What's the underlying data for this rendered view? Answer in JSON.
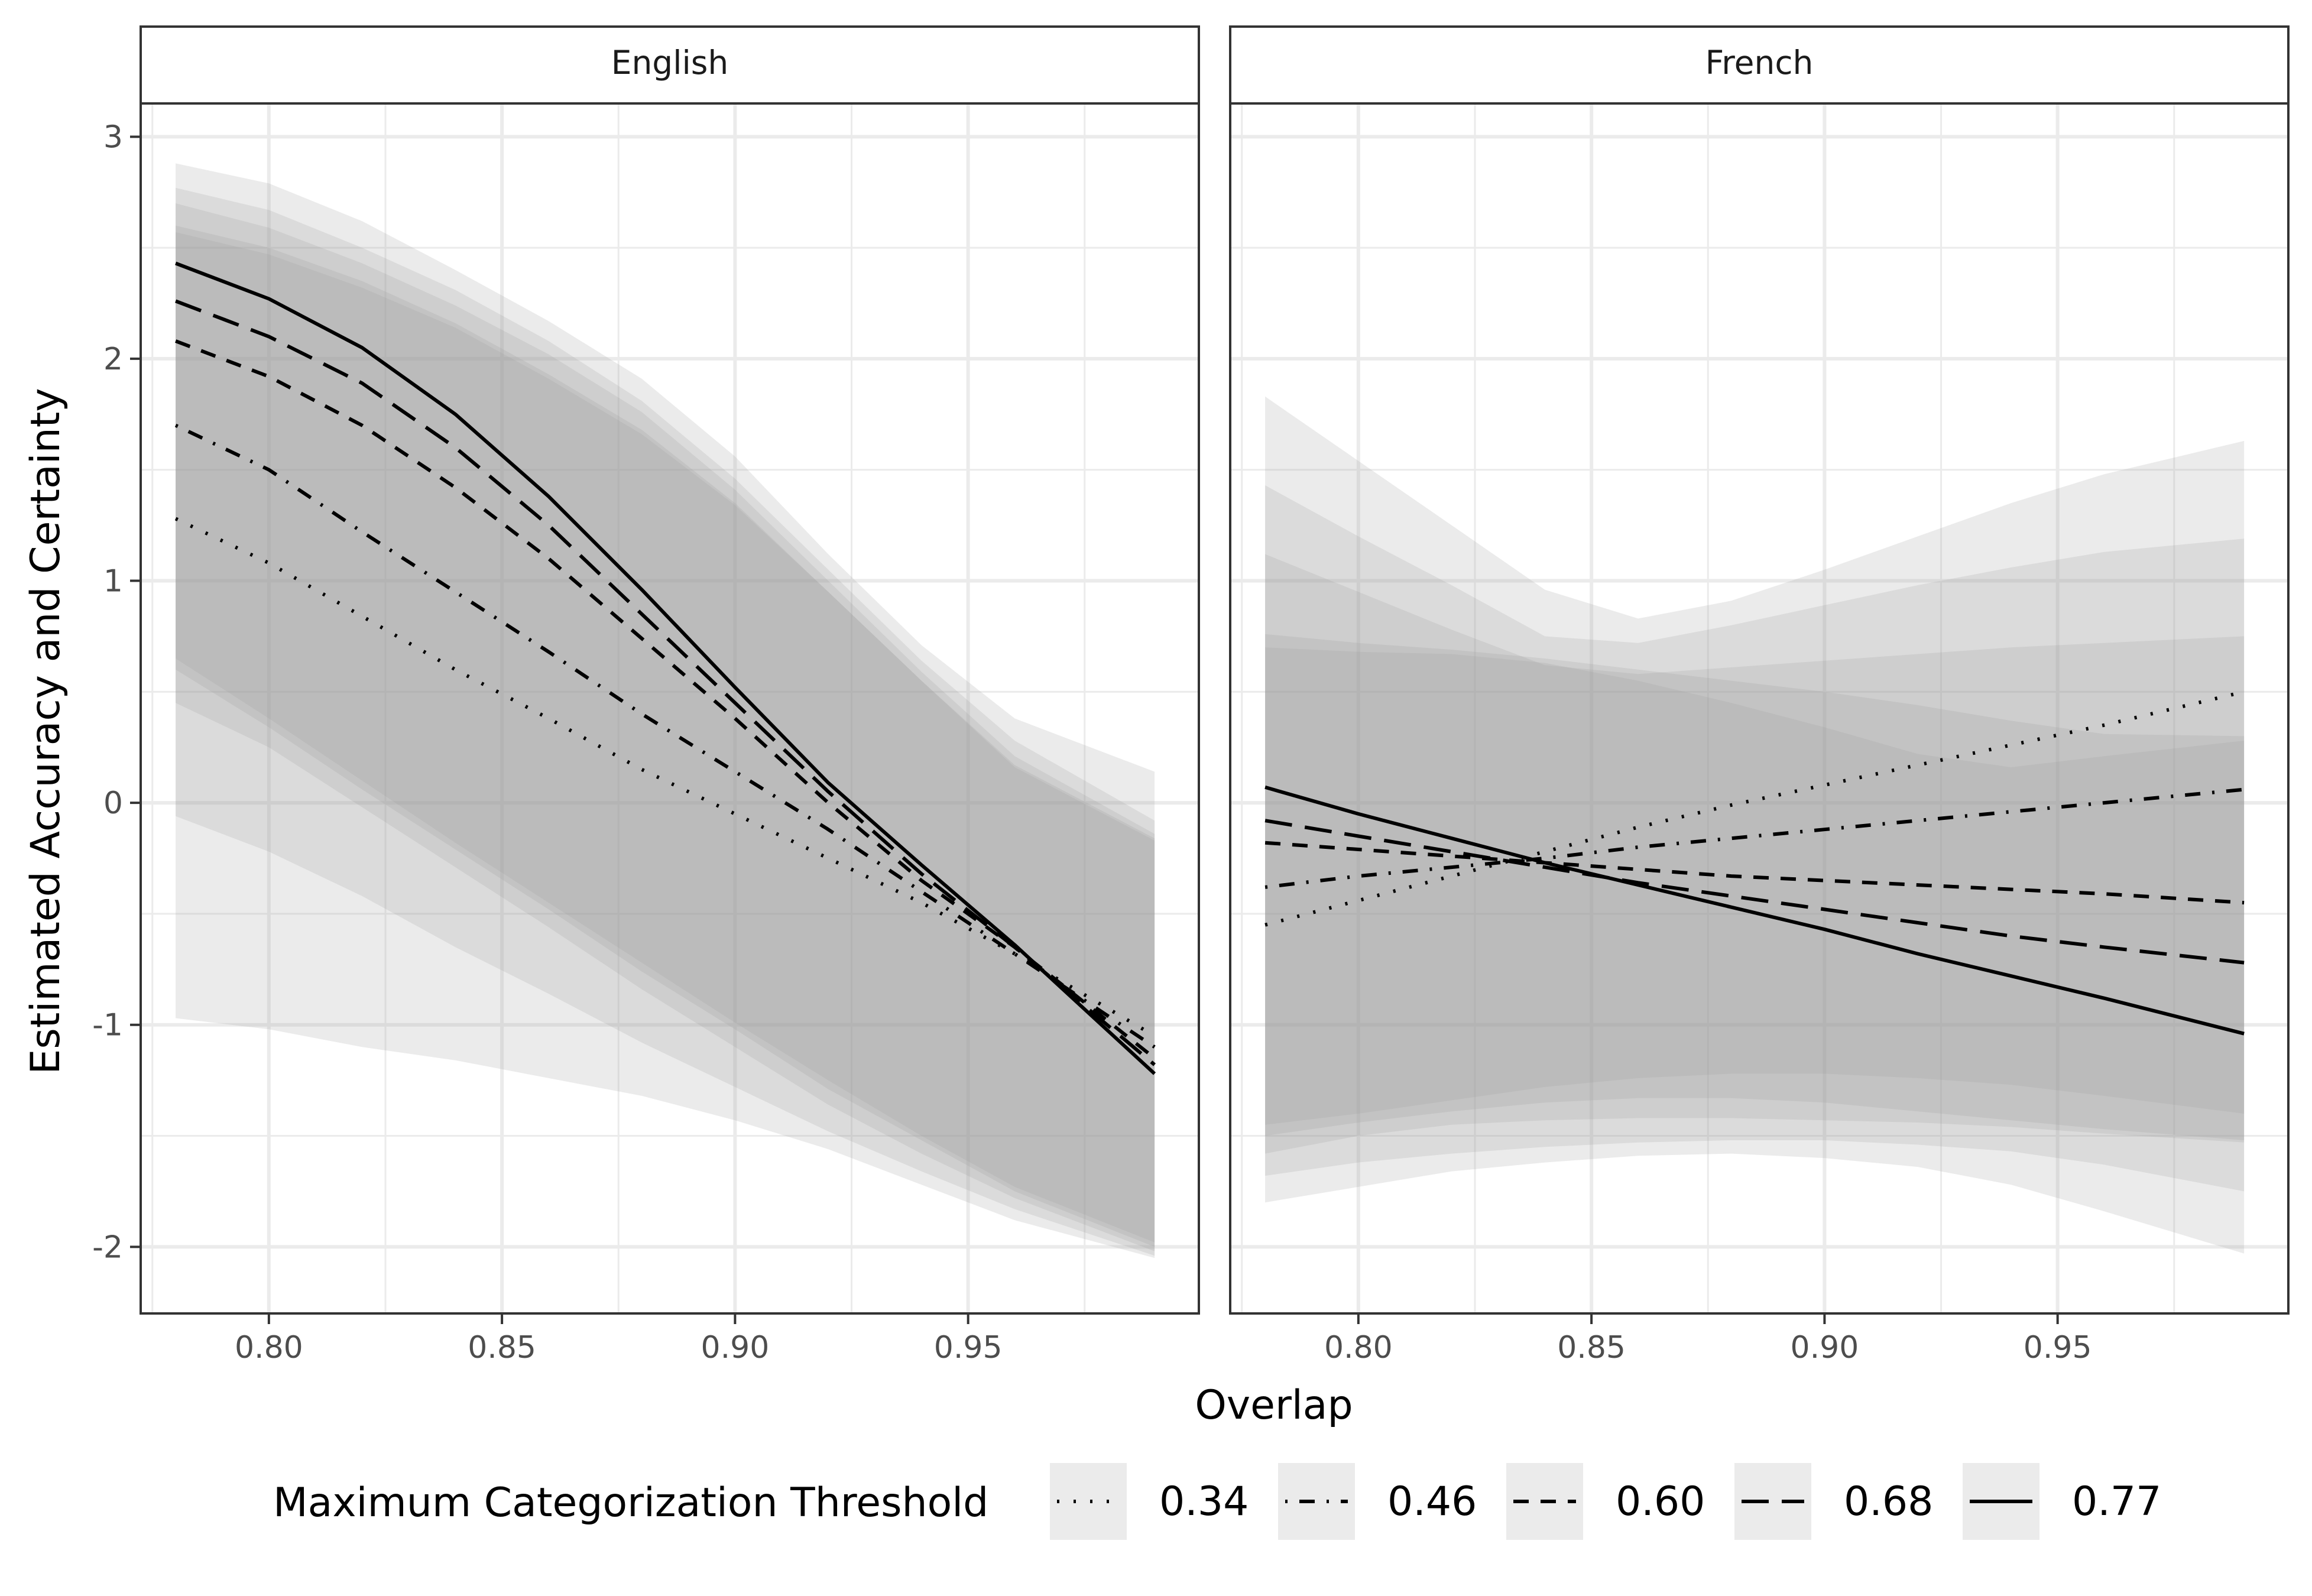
{
  "chart_data": {
    "type": "line",
    "xlabel": "Overlap",
    "ylabel": "Estimated Accuracy and Certainty",
    "xlim": [
      0.7725,
      0.9995
    ],
    "ylim": [
      -2.3,
      3.15
    ],
    "x_ticks": [
      0.8,
      0.85,
      0.9,
      0.95
    ],
    "x_tick_labels": [
      "0.80",
      "0.85",
      "0.90",
      "0.95"
    ],
    "y_ticks": [
      -2,
      -1,
      0,
      1,
      2,
      3
    ],
    "y_tick_labels": [
      "-2",
      "-1",
      "0",
      "1",
      "2",
      "3"
    ],
    "grid": true,
    "legend": {
      "title": "Maximum Categorization Threshold",
      "position": "bottom",
      "entries": [
        "0.34",
        "0.46",
        "0.60",
        "0.68",
        "0.77"
      ]
    },
    "line_color": "#000000",
    "ribbon_color": "#999999",
    "x": [
      0.78,
      0.8,
      0.82,
      0.84,
      0.86,
      0.88,
      0.9,
      0.92,
      0.94,
      0.96,
      0.99
    ],
    "panels": [
      {
        "label": "English",
        "series": [
          {
            "name": "0.34",
            "dash": "dotted",
            "values": [
              1.28,
              1.08,
              0.84,
              0.6,
              0.38,
              0.15,
              -0.05,
              -0.25,
              -0.45,
              -0.68,
              -1.05
            ],
            "lower": [
              -0.97,
              -1.02,
              -1.1,
              -1.16,
              -1.24,
              -1.32,
              -1.43,
              -1.56,
              -1.72,
              -1.88,
              -2.05
            ],
            "upper": [
              2.88,
              2.79,
              2.62,
              2.4,
              2.17,
              1.91,
              1.56,
              1.12,
              0.71,
              0.38,
              0.14
            ]
          },
          {
            "name": "0.46",
            "dash": "dotdash",
            "values": [
              1.7,
              1.5,
              1.22,
              0.95,
              0.68,
              0.4,
              0.14,
              -0.12,
              -0.4,
              -0.68,
              -1.1
            ],
            "lower": [
              -0.06,
              -0.22,
              -0.42,
              -0.65,
              -0.86,
              -1.08,
              -1.28,
              -1.48,
              -1.66,
              -1.83,
              -2.04
            ],
            "upper": [
              2.77,
              2.67,
              2.5,
              2.31,
              2.08,
              1.81,
              1.46,
              1.05,
              0.64,
              0.28,
              -0.08
            ]
          },
          {
            "name": "0.60",
            "dash": "dashed",
            "values": [
              2.08,
              1.92,
              1.7,
              1.42,
              1.1,
              0.74,
              0.38,
              0.0,
              -0.35,
              -0.65,
              -1.15
            ],
            "lower": [
              0.45,
              0.25,
              -0.02,
              -0.29,
              -0.56,
              -0.84,
              -1.1,
              -1.36,
              -1.58,
              -1.78,
              -2.02
            ],
            "upper": [
              2.7,
              2.59,
              2.43,
              2.24,
              2.02,
              1.76,
              1.41,
              1.0,
              0.59,
              0.21,
              -0.14
            ]
          },
          {
            "name": "0.68",
            "dash": "longdash",
            "values": [
              2.26,
              2.1,
              1.89,
              1.6,
              1.25,
              0.85,
              0.45,
              0.05,
              -0.32,
              -0.65,
              -1.18
            ],
            "lower": [
              0.6,
              0.34,
              0.06,
              -0.21,
              -0.48,
              -0.76,
              -1.02,
              -1.29,
              -1.52,
              -1.75,
              -2.0
            ],
            "upper": [
              2.6,
              2.5,
              2.35,
              2.16,
              1.93,
              1.68,
              1.35,
              0.95,
              0.55,
              0.17,
              -0.16
            ]
          },
          {
            "name": "0.77",
            "dash": "solid",
            "values": [
              2.43,
              2.27,
              2.05,
              1.75,
              1.38,
              0.96,
              0.52,
              0.09,
              -0.28,
              -0.64,
              -1.22
            ],
            "lower": [
              0.65,
              0.38,
              0.1,
              -0.18,
              -0.45,
              -0.72,
              -0.99,
              -1.25,
              -1.5,
              -1.73,
              -1.98
            ],
            "upper": [
              2.57,
              2.47,
              2.32,
              2.14,
              1.91,
              1.66,
              1.34,
              0.95,
              0.55,
              0.16,
              -0.17
            ]
          }
        ]
      },
      {
        "label": "French",
        "series": [
          {
            "name": "0.34",
            "dash": "dotted",
            "values": [
              -0.55,
              -0.44,
              -0.33,
              -0.22,
              -0.11,
              -0.01,
              0.08,
              0.17,
              0.26,
              0.35,
              0.5
            ],
            "lower": [
              -1.8,
              -1.73,
              -1.66,
              -1.62,
              -1.59,
              -1.58,
              -1.6,
              -1.64,
              -1.72,
              -1.84,
              -2.03
            ],
            "upper": [
              1.83,
              1.54,
              1.25,
              0.96,
              0.83,
              0.91,
              1.05,
              1.2,
              1.35,
              1.48,
              1.63
            ]
          },
          {
            "name": "0.46",
            "dash": "dotdash",
            "values": [
              -0.38,
              -0.33,
              -0.29,
              -0.25,
              -0.2,
              -0.16,
              -0.12,
              -0.08,
              -0.04,
              0.0,
              0.06
            ],
            "lower": [
              -1.68,
              -1.62,
              -1.58,
              -1.55,
              -1.53,
              -1.52,
              -1.52,
              -1.54,
              -1.57,
              -1.63,
              -1.75
            ],
            "upper": [
              1.43,
              1.2,
              0.98,
              0.75,
              0.72,
              0.8,
              0.89,
              0.98,
              1.06,
              1.13,
              1.19
            ]
          },
          {
            "name": "0.60",
            "dash": "dashed",
            "values": [
              -0.18,
              -0.21,
              -0.24,
              -0.27,
              -0.3,
              -0.33,
              -0.35,
              -0.37,
              -0.39,
              -0.41,
              -0.45
            ],
            "lower": [
              -1.58,
              -1.5,
              -1.45,
              -1.43,
              -1.42,
              -1.42,
              -1.43,
              -1.44,
              -1.46,
              -1.49,
              -1.53
            ],
            "upper": [
              1.12,
              0.95,
              0.78,
              0.62,
              0.58,
              0.61,
              0.64,
              0.67,
              0.7,
              0.72,
              0.75
            ]
          },
          {
            "name": "0.68",
            "dash": "longdash",
            "values": [
              -0.08,
              -0.15,
              -0.22,
              -0.29,
              -0.36,
              -0.42,
              -0.48,
              -0.54,
              -0.6,
              -0.65,
              -0.72
            ],
            "lower": [
              -1.5,
              -1.44,
              -1.39,
              -1.35,
              -1.33,
              -1.33,
              -1.35,
              -1.39,
              -1.43,
              -1.47,
              -1.52
            ],
            "upper": [
              0.76,
              0.72,
              0.69,
              0.65,
              0.6,
              0.55,
              0.5,
              0.44,
              0.37,
              0.31,
              0.3
            ]
          },
          {
            "name": "0.77",
            "dash": "solid",
            "values": [
              0.07,
              -0.05,
              -0.16,
              -0.27,
              -0.37,
              -0.47,
              -0.57,
              -0.68,
              -0.78,
              -0.88,
              -1.04
            ],
            "lower": [
              -1.45,
              -1.4,
              -1.34,
              -1.28,
              -1.24,
              -1.22,
              -1.22,
              -1.24,
              -1.27,
              -1.32,
              -1.4
            ],
            "upper": [
              0.7,
              0.68,
              0.67,
              0.63,
              0.55,
              0.45,
              0.34,
              0.22,
              0.16,
              0.21,
              0.28
            ]
          }
        ]
      }
    ]
  }
}
